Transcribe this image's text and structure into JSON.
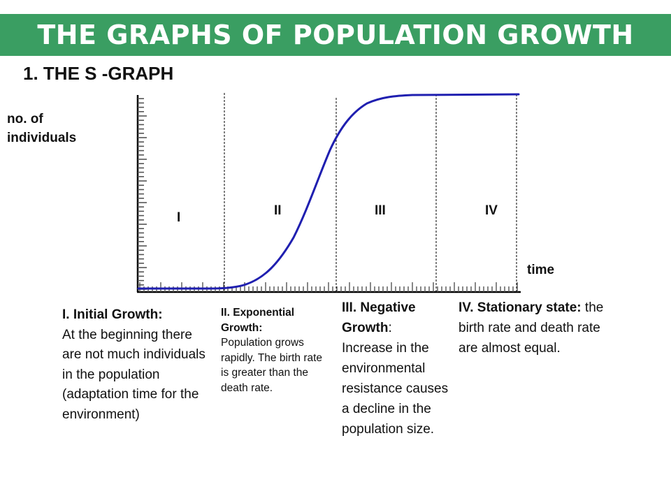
{
  "banner": {
    "title": "THE GRAPHS OF POPULATION GROWTH"
  },
  "section_title": "1. THE S -GRAPH",
  "y_axis_label": {
    "line1": "no. of",
    "line2": "individuals"
  },
  "x_axis_label": "time",
  "phases": [
    {
      "numeral": "I",
      "heading": "I. Initial Growth:",
      "text": "At the beginning there are not much individuals in the population (adaptation time for the environment)"
    },
    {
      "numeral": "II",
      "heading": "II. Exponential Growth:",
      "text": "Population grows rapidly. The birth rate is greater than the death rate."
    },
    {
      "numeral": "III",
      "heading": "III. Negative Growth",
      "heading_suffix": ":",
      "text": "Increase in the environmental resistance causes a decline in the population size."
    },
    {
      "numeral": "IV",
      "heading": "IV. Stationary state:",
      "text": " the birth rate and death rate are almost equal."
    }
  ],
  "colors": {
    "banner": "#3a9e62",
    "curve": "#1f1fb0",
    "axis": "#000000"
  }
}
